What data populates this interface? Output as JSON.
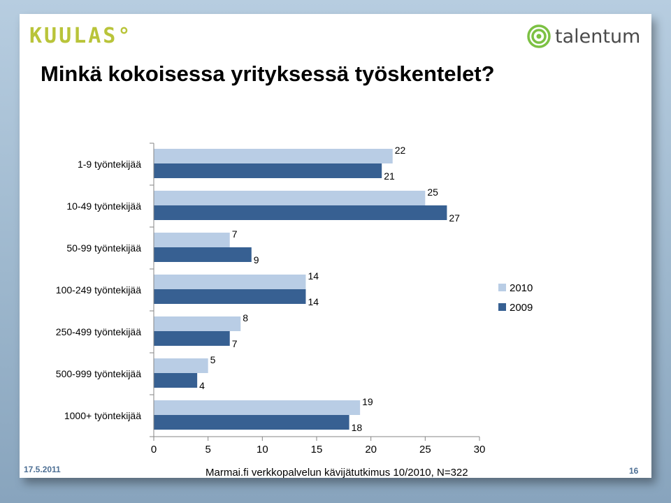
{
  "slide": {
    "title": "Minkä kokoisessa yrityksessä työskentelet?",
    "footer_date": "17.5.2011",
    "footer_source": "Marmai.fi verkkopalvelun kävijätutkimus 10/2010, N=322",
    "page_number": "16",
    "logo_left": "KUULAS",
    "logo_left_mark": "°",
    "logo_right": "talentum"
  },
  "colors": {
    "series_2010": "#b9cde5",
    "series_2009": "#376092",
    "axis": "#868686",
    "kuulas": "#b9c43a",
    "talentum_ring": "#7cc143",
    "footer": "#4d6f94"
  },
  "chart_data": {
    "type": "bar",
    "orientation": "horizontal",
    "categories": [
      "1-9 työntekijää",
      "10-49 työntekijää",
      "50-99 työntekijää",
      "100-249 työntekijää",
      "250-499 työntekijää",
      "500-999 työntekijää",
      "1000+ työntekijää"
    ],
    "series": [
      {
        "name": "2010",
        "values": [
          22,
          25,
          7,
          14,
          8,
          5,
          19
        ]
      },
      {
        "name": "2009",
        "values": [
          21,
          27,
          9,
          14,
          7,
          4,
          18
        ]
      }
    ],
    "xlim": [
      0,
      30
    ],
    "xticks": [
      0,
      5,
      10,
      15,
      20,
      25,
      30
    ],
    "data_labels": true,
    "grid": false,
    "legend": "right"
  }
}
